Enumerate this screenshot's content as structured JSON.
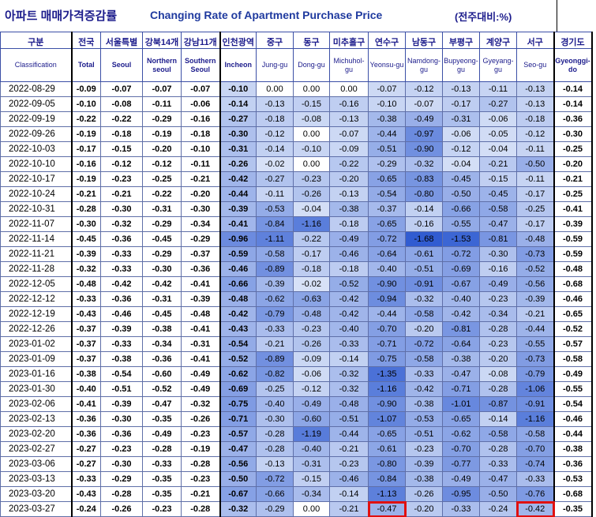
{
  "title": {
    "korean": "아파트 매매가격증감률",
    "english": "Changing Rate of Apartment Purchase Price",
    "unit": "(전주대비:%)"
  },
  "columns": [
    {
      "ko": "구분",
      "en": "Classification"
    },
    {
      "ko": "전국",
      "en": "Total"
    },
    {
      "ko": "서울특별",
      "en": "Seoul"
    },
    {
      "ko": "강북14개",
      "en": "Northern seoul"
    },
    {
      "ko": "강남11개",
      "en": "Southern Seoul"
    },
    {
      "ko": "인천광역",
      "en": "Incheon"
    },
    {
      "ko": "중구",
      "en": "Jung-gu"
    },
    {
      "ko": "동구",
      "en": "Dong-gu"
    },
    {
      "ko": "미추홀구",
      "en": "Michuhol-gu"
    },
    {
      "ko": "연수구",
      "en": "Yeonsu-gu"
    },
    {
      "ko": "남동구",
      "en": "Namdong-gu"
    },
    {
      "ko": "부평구",
      "en": "Bupyeong-gu"
    },
    {
      "ko": "계양구",
      "en": "Gyeyang-gu"
    },
    {
      "ko": "서구",
      "en": "Seo-gu"
    },
    {
      "ko": "경기도",
      "en": "Gyeonggi-do"
    }
  ],
  "rows": [
    [
      "2022-08-29",
      "-0.09",
      "-0.07",
      "-0.07",
      "-0.07",
      "-0.10",
      "0.00",
      "0.00",
      "0.00",
      "-0.07",
      "-0.12",
      "-0.13",
      "-0.11",
      "-0.13",
      "-0.14"
    ],
    [
      "2022-09-05",
      "-0.10",
      "-0.08",
      "-0.11",
      "-0.06",
      "-0.14",
      "-0.13",
      "-0.15",
      "-0.16",
      "-0.10",
      "-0.07",
      "-0.17",
      "-0.27",
      "-0.13",
      "-0.14"
    ],
    [
      "2022-09-19",
      "-0.22",
      "-0.22",
      "-0.29",
      "-0.16",
      "-0.27",
      "-0.18",
      "-0.08",
      "-0.13",
      "-0.38",
      "-0.49",
      "-0.31",
      "-0.06",
      "-0.18",
      "-0.36"
    ],
    [
      "2022-09-26",
      "-0.19",
      "-0.18",
      "-0.19",
      "-0.18",
      "-0.30",
      "-0.12",
      "0.00",
      "-0.07",
      "-0.44",
      "-0.97",
      "-0.06",
      "-0.05",
      "-0.12",
      "-0.30"
    ],
    [
      "2022-10-03",
      "-0.17",
      "-0.15",
      "-0.20",
      "-0.10",
      "-0.31",
      "-0.14",
      "-0.10",
      "-0.09",
      "-0.51",
      "-0.90",
      "-0.12",
      "-0.04",
      "-0.11",
      "-0.25"
    ],
    [
      "2022-10-10",
      "-0.16",
      "-0.12",
      "-0.12",
      "-0.11",
      "-0.26",
      "-0.02",
      "0.00",
      "-0.22",
      "-0.29",
      "-0.32",
      "-0.04",
      "-0.21",
      "-0.50",
      "-0.20"
    ],
    [
      "2022-10-17",
      "-0.19",
      "-0.23",
      "-0.25",
      "-0.21",
      "-0.42",
      "-0.27",
      "-0.23",
      "-0.20",
      "-0.65",
      "-0.83",
      "-0.45",
      "-0.15",
      "-0.11",
      "-0.21"
    ],
    [
      "2022-10-24",
      "-0.21",
      "-0.21",
      "-0.22",
      "-0.20",
      "-0.44",
      "-0.11",
      "-0.26",
      "-0.13",
      "-0.54",
      "-0.80",
      "-0.50",
      "-0.45",
      "-0.17",
      "-0.25"
    ],
    [
      "2022-10-31",
      "-0.28",
      "-0.30",
      "-0.31",
      "-0.30",
      "-0.39",
      "-0.53",
      "-0.04",
      "-0.38",
      "-0.37",
      "-0.14",
      "-0.66",
      "-0.58",
      "-0.25",
      "-0.41"
    ],
    [
      "2022-11-07",
      "-0.30",
      "-0.32",
      "-0.29",
      "-0.34",
      "-0.41",
      "-0.84",
      "-1.16",
      "-0.18",
      "-0.65",
      "-0.16",
      "-0.55",
      "-0.47",
      "-0.17",
      "-0.39"
    ],
    [
      "2022-11-14",
      "-0.45",
      "-0.36",
      "-0.45",
      "-0.29",
      "-0.96",
      "-1.11",
      "-0.22",
      "-0.49",
      "-0.72",
      "-1.68",
      "-1.53",
      "-0.81",
      "-0.48",
      "-0.59"
    ],
    [
      "2022-11-21",
      "-0.39",
      "-0.33",
      "-0.29",
      "-0.37",
      "-0.59",
      "-0.58",
      "-0.17",
      "-0.46",
      "-0.64",
      "-0.61",
      "-0.72",
      "-0.30",
      "-0.73",
      "-0.59"
    ],
    [
      "2022-11-28",
      "-0.32",
      "-0.33",
      "-0.30",
      "-0.36",
      "-0.46",
      "-0.89",
      "-0.18",
      "-0.18",
      "-0.40",
      "-0.51",
      "-0.69",
      "-0.16",
      "-0.52",
      "-0.48"
    ],
    [
      "2022-12-05",
      "-0.48",
      "-0.42",
      "-0.42",
      "-0.41",
      "-0.66",
      "-0.39",
      "-0.02",
      "-0.52",
      "-0.90",
      "-0.91",
      "-0.67",
      "-0.49",
      "-0.56",
      "-0.68"
    ],
    [
      "2022-12-12",
      "-0.33",
      "-0.36",
      "-0.31",
      "-0.39",
      "-0.48",
      "-0.62",
      "-0.63",
      "-0.42",
      "-0.94",
      "-0.32",
      "-0.40",
      "-0.23",
      "-0.39",
      "-0.46"
    ],
    [
      "2022-12-19",
      "-0.43",
      "-0.46",
      "-0.45",
      "-0.48",
      "-0.42",
      "-0.79",
      "-0.48",
      "-0.42",
      "-0.44",
      "-0.58",
      "-0.42",
      "-0.34",
      "-0.21",
      "-0.65"
    ],
    [
      "2022-12-26",
      "-0.37",
      "-0.39",
      "-0.38",
      "-0.41",
      "-0.43",
      "-0.33",
      "-0.23",
      "-0.40",
      "-0.70",
      "-0.20",
      "-0.81",
      "-0.28",
      "-0.44",
      "-0.52"
    ],
    [
      "2023-01-02",
      "-0.37",
      "-0.33",
      "-0.34",
      "-0.31",
      "-0.54",
      "-0.21",
      "-0.26",
      "-0.33",
      "-0.71",
      "-0.72",
      "-0.64",
      "-0.23",
      "-0.55",
      "-0.57"
    ],
    [
      "2023-01-09",
      "-0.37",
      "-0.38",
      "-0.36",
      "-0.41",
      "-0.52",
      "-0.89",
      "-0.09",
      "-0.14",
      "-0.75",
      "-0.58",
      "-0.38",
      "-0.20",
      "-0.73",
      "-0.58"
    ],
    [
      "2023-01-16",
      "-0.38",
      "-0.54",
      "-0.60",
      "-0.49",
      "-0.62",
      "-0.82",
      "-0.06",
      "-0.32",
      "-1.35",
      "-0.33",
      "-0.47",
      "-0.08",
      "-0.79",
      "-0.49"
    ],
    [
      "2023-01-30",
      "-0.40",
      "-0.51",
      "-0.52",
      "-0.49",
      "-0.69",
      "-0.25",
      "-0.12",
      "-0.32",
      "-1.16",
      "-0.42",
      "-0.71",
      "-0.28",
      "-1.06",
      "-0.55"
    ],
    [
      "2023-02-06",
      "-0.41",
      "-0.39",
      "-0.47",
      "-0.32",
      "-0.75",
      "-0.40",
      "-0.49",
      "-0.48",
      "-0.90",
      "-0.38",
      "-1.01",
      "-0.87",
      "-0.91",
      "-0.54"
    ],
    [
      "2023-02-13",
      "-0.36",
      "-0.30",
      "-0.35",
      "-0.26",
      "-0.71",
      "-0.30",
      "-0.60",
      "-0.51",
      "-1.07",
      "-0.53",
      "-0.65",
      "-0.14",
      "-1.16",
      "-0.46"
    ],
    [
      "2023-02-20",
      "-0.36",
      "-0.36",
      "-0.49",
      "-0.23",
      "-0.57",
      "-0.28",
      "-1.19",
      "-0.44",
      "-0.65",
      "-0.51",
      "-0.62",
      "-0.58",
      "-0.58",
      "-0.44"
    ],
    [
      "2023-02-27",
      "-0.27",
      "-0.23",
      "-0.28",
      "-0.19",
      "-0.47",
      "-0.28",
      "-0.40",
      "-0.21",
      "-0.61",
      "-0.23",
      "-0.70",
      "-0.28",
      "-0.70",
      "-0.38"
    ],
    [
      "2023-03-06",
      "-0.27",
      "-0.30",
      "-0.33",
      "-0.28",
      "-0.56",
      "-0.13",
      "-0.31",
      "-0.23",
      "-0.80",
      "-0.39",
      "-0.77",
      "-0.33",
      "-0.74",
      "-0.36"
    ],
    [
      "2023-03-13",
      "-0.33",
      "-0.29",
      "-0.35",
      "-0.23",
      "-0.50",
      "-0.72",
      "-0.15",
      "-0.46",
      "-0.84",
      "-0.38",
      "-0.49",
      "-0.47",
      "-0.33",
      "-0.53"
    ],
    [
      "2023-03-20",
      "-0.43",
      "-0.28",
      "-0.35",
      "-0.21",
      "-0.67",
      "-0.66",
      "-0.34",
      "-0.14",
      "-1.13",
      "-0.26",
      "-0.95",
      "-0.50",
      "-0.76",
      "-0.68"
    ],
    [
      "2023-03-27",
      "-0.24",
      "-0.26",
      "-0.23",
      "-0.28",
      "-0.32",
      "-0.29",
      "0.00",
      "-0.21",
      "-0.47",
      "-0.20",
      "-0.33",
      "-0.24",
      "-0.42",
      "-0.35"
    ]
  ],
  "highlighted_cells": [
    {
      "row": 28,
      "col": 9
    },
    {
      "row": 28,
      "col": 13
    }
  ],
  "colors": {
    "header_text": "#1c1c8c",
    "highlight_border": "#e01010",
    "shade_light": "#dde6f8",
    "shade_dark": "#2f5bd1"
  }
}
